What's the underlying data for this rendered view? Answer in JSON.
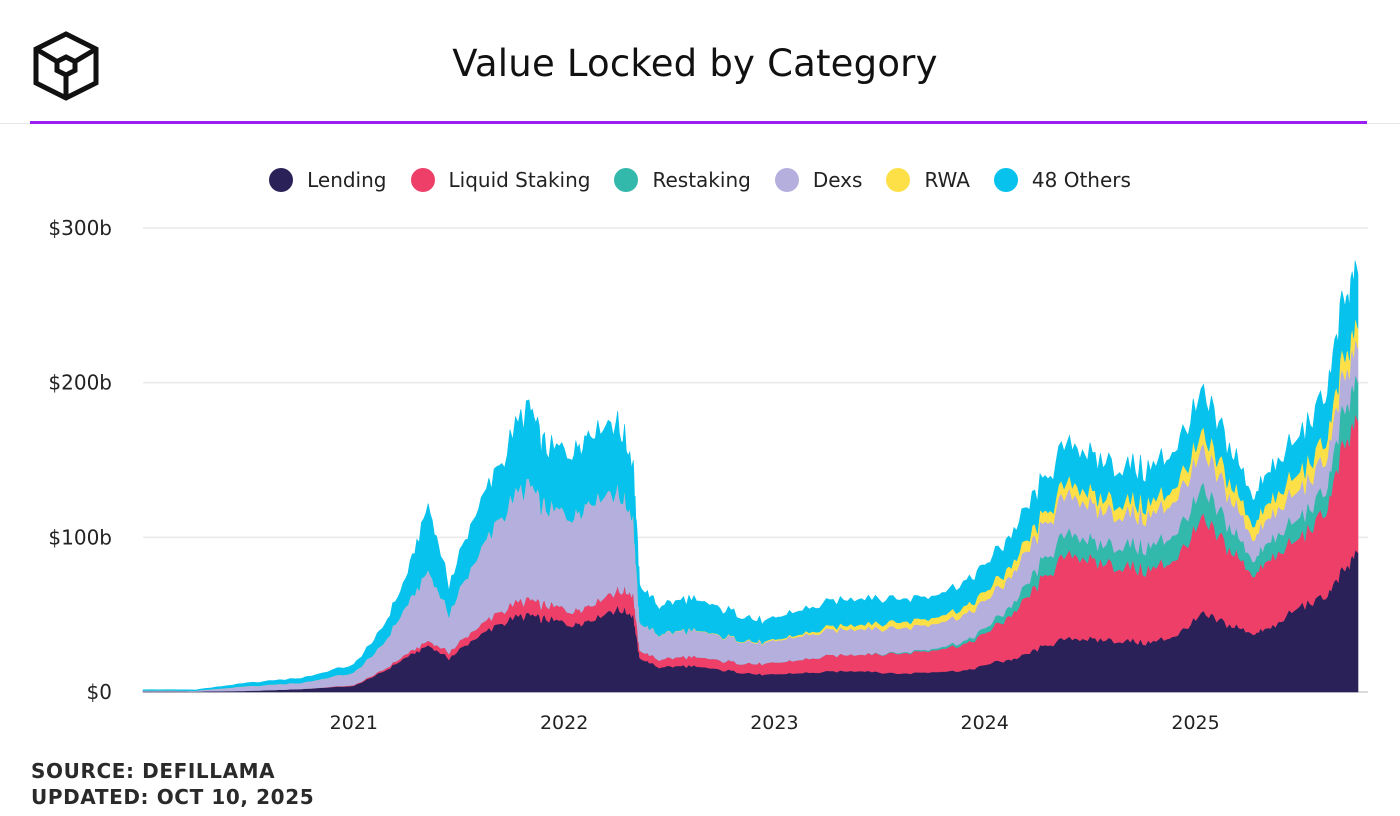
{
  "header": {
    "title": "Value Locked by Category",
    "logo_icon": "cube-logo-icon"
  },
  "footer": {
    "source": "SOURCE: DEFILLAMA",
    "updated": "UPDATED: OCT 10, 2025"
  },
  "chart_data": {
    "type": "area",
    "stacked": true,
    "title": "Value Locked by Category",
    "xlabel": "",
    "ylabel": "",
    "ylim": [
      0,
      300
    ],
    "xlim": [
      "2020-01-01",
      "2025-10-10"
    ],
    "grid": "horizontal",
    "legend_position": "top",
    "y_ticks": [
      {
        "value": 0,
        "label": "$0"
      },
      {
        "value": 100,
        "label": "$100b"
      },
      {
        "value": 200,
        "label": "$200b"
      },
      {
        "value": 300,
        "label": "$300b"
      }
    ],
    "x_ticks": [
      {
        "value": "2021-01-01",
        "label": "2021"
      },
      {
        "value": "2022-01-01",
        "label": "2022"
      },
      {
        "value": "2023-01-01",
        "label": "2023"
      },
      {
        "value": "2024-01-01",
        "label": "2024"
      },
      {
        "value": "2025-01-01",
        "label": "2025"
      }
    ],
    "x": [
      "2020-01-01",
      "2020-04-01",
      "2020-07-01",
      "2020-10-01",
      "2021-01-01",
      "2021-02-15",
      "2021-04-01",
      "2021-05-10",
      "2021-06-15",
      "2021-08-01",
      "2021-09-15",
      "2021-11-01",
      "2021-12-01",
      "2022-01-15",
      "2022-02-15",
      "2022-04-01",
      "2022-05-01",
      "2022-05-12",
      "2022-06-15",
      "2022-08-01",
      "2022-09-15",
      "2022-11-01",
      "2022-12-15",
      "2023-02-01",
      "2023-04-01",
      "2023-06-01",
      "2023-08-01",
      "2023-10-01",
      "2023-12-01",
      "2024-01-15",
      "2024-03-01",
      "2024-04-15",
      "2024-06-01",
      "2024-07-15",
      "2024-09-01",
      "2024-10-15",
      "2024-12-01",
      "2025-01-15",
      "2025-03-01",
      "2025-04-10",
      "2025-05-15",
      "2025-07-01",
      "2025-08-15",
      "2025-09-15",
      "2025-10-10"
    ],
    "series": [
      {
        "name": "Lending",
        "color": "#2a2159",
        "values": [
          0.5,
          0.4,
          0.8,
          2,
          4,
          12,
          22,
          30,
          22,
          35,
          45,
          50,
          47,
          44,
          47,
          54,
          50,
          22,
          16,
          17,
          15,
          13,
          11,
          12,
          13,
          14,
          12,
          13,
          14,
          19,
          22,
          30,
          35,
          34,
          33,
          32,
          37,
          50,
          44,
          38,
          42,
          55,
          62,
          78,
          90
        ]
      },
      {
        "name": "Liquid Staking",
        "color": "#ee3f68",
        "values": [
          0,
          0,
          0,
          0,
          0.5,
          1,
          2,
          3,
          4,
          6,
          8,
          10,
          9,
          9,
          10,
          12,
          14,
          5,
          5,
          6,
          6,
          6,
          7,
          8,
          10,
          11,
          13,
          14,
          17,
          22,
          32,
          45,
          55,
          50,
          48,
          47,
          50,
          60,
          50,
          38,
          45,
          44,
          55,
          80,
          85
        ]
      },
      {
        "name": "Restaking",
        "color": "#33b8ac",
        "values": [
          0,
          0,
          0,
          0,
          0,
          0,
          0,
          0,
          0,
          0,
          0,
          0,
          0,
          0,
          0,
          0,
          0,
          0,
          0,
          0,
          0,
          0,
          0,
          0,
          0,
          0,
          0.5,
          1,
          2,
          4,
          7,
          12,
          14,
          12,
          14,
          15,
          17,
          19,
          15,
          10,
          12,
          13,
          14,
          22,
          25
        ]
      },
      {
        "name": "Dexs",
        "color": "#b5afde",
        "values": [
          0.5,
          0.5,
          3,
          4,
          8,
          15,
          30,
          45,
          25,
          45,
          62,
          75,
          62,
          62,
          68,
          65,
          50,
          18,
          16,
          17,
          16,
          15,
          13,
          15,
          16,
          17,
          16,
          16,
          17,
          18,
          20,
          22,
          25,
          22,
          20,
          20,
          22,
          24,
          20,
          14,
          16,
          18,
          20,
          22,
          22
        ]
      },
      {
        "name": "RWA",
        "color": "#fde047",
        "values": [
          0,
          0,
          0,
          0,
          0,
          0,
          0,
          0,
          0,
          0,
          0,
          0,
          0,
          0,
          0,
          0,
          0,
          0,
          0.2,
          0.3,
          0.3,
          0.5,
          0.7,
          1,
          2,
          3,
          4,
          4,
          5,
          6,
          7,
          7,
          8,
          8,
          8,
          8,
          9,
          10,
          10,
          9,
          10,
          11,
          12,
          12,
          13
        ]
      },
      {
        "name": "48 Others",
        "color": "#06c2ec",
        "values": [
          0.5,
          0.5,
          2,
          3,
          5,
          10,
          18,
          42,
          18,
          30,
          35,
          50,
          38,
          42,
          45,
          45,
          34,
          24,
          18,
          20,
          18,
          16,
          13,
          15,
          16,
          17,
          15,
          14,
          16,
          18,
          20,
          22,
          25,
          24,
          22,
          22,
          24,
          26,
          22,
          18,
          20,
          23,
          30,
          36,
          35
        ]
      }
    ]
  }
}
